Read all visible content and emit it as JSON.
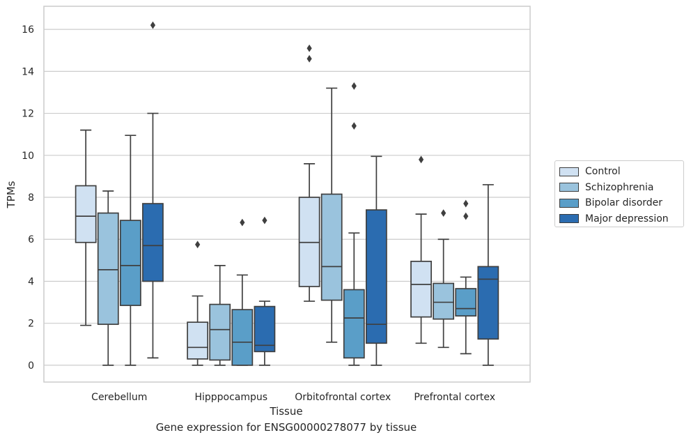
{
  "chart_data": {
    "type": "boxplot",
    "title": "",
    "caption": "Gene expression for ENSG00000278077 by tissue",
    "xlabel": "Tissue",
    "ylabel": "TPMs",
    "ylim": [
      -0.8,
      17.1
    ],
    "yticks": [
      0,
      2,
      4,
      6,
      8,
      10,
      12,
      14,
      16
    ],
    "grid": "horizontal",
    "legend_position": "right",
    "categories": [
      "Cerebellum",
      "Hipppocampus",
      "Orbitofrontal cortex",
      "Prefrontal cortex"
    ],
    "series": [
      {
        "name": "Control",
        "color": "#d0e1f2",
        "boxes": [
          {
            "whisker_low": 1.9,
            "q1": 5.85,
            "median": 7.1,
            "q3": 8.55,
            "whisker_high": 11.2,
            "outliers": []
          },
          {
            "whisker_low": 0.0,
            "q1": 0.3,
            "median": 0.85,
            "q3": 2.05,
            "whisker_high": 3.3,
            "outliers": [
              5.75
            ]
          },
          {
            "whisker_low": 3.05,
            "q1": 3.75,
            "median": 5.85,
            "q3": 8.0,
            "whisker_high": 9.6,
            "outliers": [
              14.6,
              15.1
            ]
          },
          {
            "whisker_low": 1.05,
            "q1": 2.3,
            "median": 3.85,
            "q3": 4.95,
            "whisker_high": 7.2,
            "outliers": [
              9.8
            ]
          }
        ]
      },
      {
        "name": "Schizophrenia",
        "color": "#9ac3dd",
        "boxes": [
          {
            "whisker_low": 0.0,
            "q1": 1.95,
            "median": 4.55,
            "q3": 7.25,
            "whisker_high": 8.3,
            "outliers": []
          },
          {
            "whisker_low": 0.0,
            "q1": 0.25,
            "median": 1.7,
            "q3": 2.9,
            "whisker_high": 4.75,
            "outliers": []
          },
          {
            "whisker_low": 1.1,
            "q1": 3.1,
            "median": 4.7,
            "q3": 8.15,
            "whisker_high": 13.2,
            "outliers": []
          },
          {
            "whisker_low": 0.85,
            "q1": 2.2,
            "median": 3.0,
            "q3": 3.9,
            "whisker_high": 6.0,
            "outliers": [
              7.25
            ]
          }
        ]
      },
      {
        "name": "Bipolar disorder",
        "color": "#5a9ec8",
        "boxes": [
          {
            "whisker_low": 0.0,
            "q1": 2.85,
            "median": 4.75,
            "q3": 6.9,
            "whisker_high": 10.95,
            "outliers": []
          },
          {
            "whisker_low": 0.0,
            "q1": 0.0,
            "median": 1.1,
            "q3": 2.65,
            "whisker_high": 4.3,
            "outliers": [
              6.8
            ]
          },
          {
            "whisker_low": 0.0,
            "q1": 0.35,
            "median": 2.25,
            "q3": 3.6,
            "whisker_high": 6.3,
            "outliers": [
              11.4,
              13.3
            ]
          },
          {
            "whisker_low": 0.55,
            "q1": 2.35,
            "median": 2.7,
            "q3": 3.65,
            "whisker_high": 4.2,
            "outliers": [
              7.1,
              7.7
            ]
          }
        ]
      },
      {
        "name": "Major depression",
        "color": "#2b6cb0",
        "boxes": [
          {
            "whisker_low": 0.35,
            "q1": 4.0,
            "median": 5.7,
            "q3": 7.7,
            "whisker_high": 12.0,
            "outliers": [
              16.2
            ]
          },
          {
            "whisker_low": 0.0,
            "q1": 0.65,
            "median": 0.95,
            "q3": 2.8,
            "whisker_high": 3.05,
            "outliers": [
              6.9
            ]
          },
          {
            "whisker_low": 0.0,
            "q1": 1.05,
            "median": 1.95,
            "q3": 7.4,
            "whisker_high": 9.95,
            "outliers": []
          },
          {
            "whisker_low": 0.0,
            "q1": 1.25,
            "median": 4.1,
            "q3": 4.7,
            "whisker_high": 8.6,
            "outliers": []
          }
        ]
      }
    ]
  }
}
